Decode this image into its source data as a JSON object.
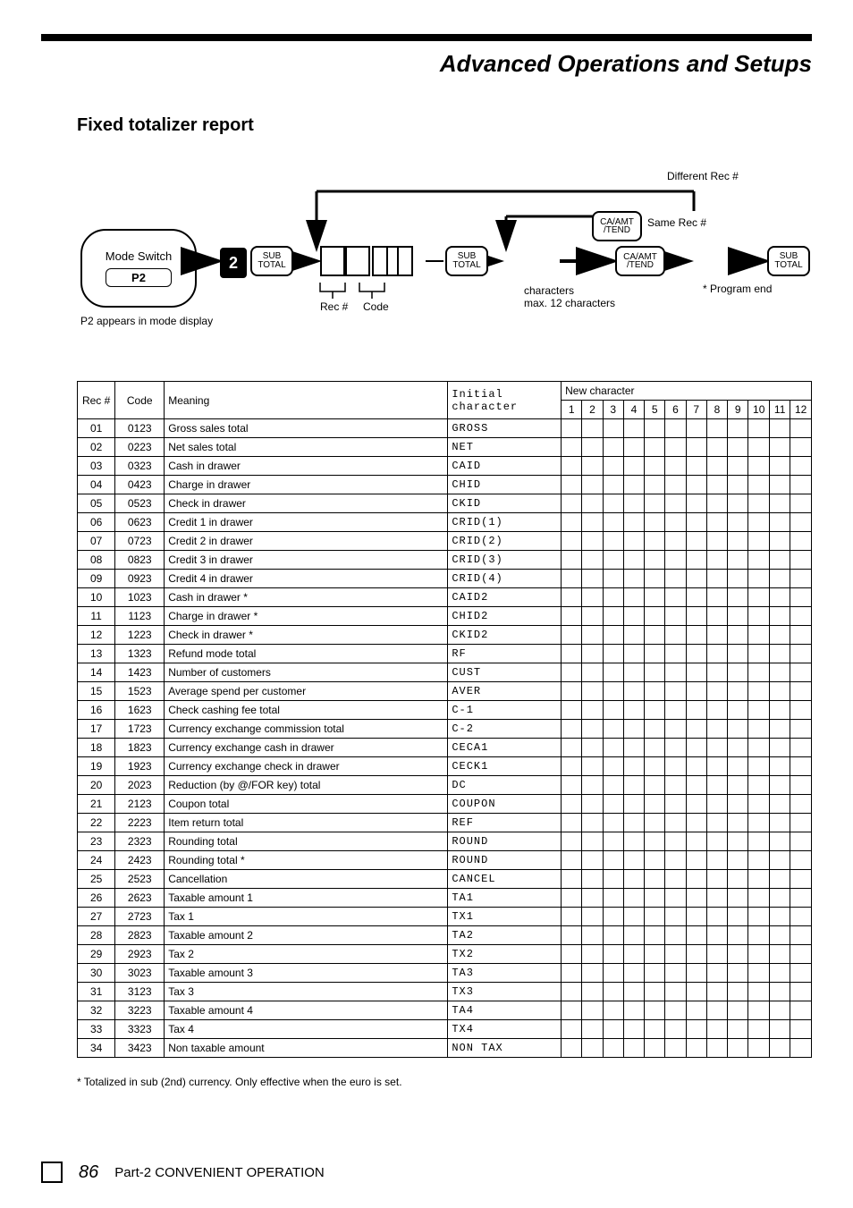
{
  "headingRight": "Advanced Operations and Setups",
  "sectionTitle": "Fixed totalizer report",
  "bubbleText": "Mode Switch",
  "modeLabel": "P2 appears in mode display",
  "recLabel": "Rec #",
  "codeLabel": "Code",
  "charLabel": "characters",
  "maxLabel": "max. 12 characters",
  "diffLabel": "Different",
  "sameLabel": "Same Rec #",
  "programCaption": "* Program end",
  "keys": {
    "two": "2",
    "subTotal": "SUB\nTOTAL",
    "caAmt": "CA/AMT\n/TEND"
  },
  "tableHeader": {
    "rec": "Rec #",
    "code": "Code",
    "meaning": "Meaning",
    "initial": "Initial character",
    "new": "New character"
  },
  "charNums": [
    "1",
    "2",
    "3",
    "4",
    "5",
    "6",
    "7",
    "8",
    "9",
    "10",
    "11",
    "12"
  ],
  "rows": [
    {
      "rec": "01",
      "code": "0123",
      "meaning": "Gross sales total",
      "initial": "GROSS"
    },
    {
      "rec": "02",
      "code": "0223",
      "meaning": "Net sales total",
      "initial": "NET"
    },
    {
      "rec": "03",
      "code": "0323",
      "meaning": "Cash in drawer",
      "initial": "CAID"
    },
    {
      "rec": "04",
      "code": "0423",
      "meaning": "Charge in drawer",
      "initial": "CHID"
    },
    {
      "rec": "05",
      "code": "0523",
      "meaning": "Check in drawer",
      "initial": "CKID"
    },
    {
      "rec": "06",
      "code": "0623",
      "meaning": "Credit 1 in drawer",
      "initial": "CRID(1)"
    },
    {
      "rec": "07",
      "code": "0723",
      "meaning": "Credit 2 in drawer",
      "initial": "CRID(2)"
    },
    {
      "rec": "08",
      "code": "0823",
      "meaning": "Credit 3 in drawer",
      "initial": "CRID(3)"
    },
    {
      "rec": "09",
      "code": "0923",
      "meaning": "Credit 4 in drawer",
      "initial": "CRID(4)"
    },
    {
      "rec": "10",
      "code": "1023",
      "meaning": "Cash in drawer *",
      "initial": "CAID2"
    },
    {
      "rec": "11",
      "code": "1123",
      "meaning": "Charge in drawer *",
      "initial": "CHID2"
    },
    {
      "rec": "12",
      "code": "1223",
      "meaning": "Check in drawer *",
      "initial": "CKID2"
    },
    {
      "rec": "13",
      "code": "1323",
      "meaning": "Refund mode total",
      "initial": "RF"
    },
    {
      "rec": "14",
      "code": "1423",
      "meaning": "Number of customers",
      "initial": "CUST"
    },
    {
      "rec": "15",
      "code": "1523",
      "meaning": "Average spend per customer",
      "initial": "AVER"
    },
    {
      "rec": "16",
      "code": "1623",
      "meaning": "Check cashing fee total",
      "initial": "C-1"
    },
    {
      "rec": "17",
      "code": "1723",
      "meaning": "Currency exchange commission total",
      "initial": "C-2"
    },
    {
      "rec": "18",
      "code": "1823",
      "meaning": "Currency exchange cash in drawer",
      "initial": "CECA1"
    },
    {
      "rec": "19",
      "code": "1923",
      "meaning": "Currency exchange check in drawer",
      "initial": "CECK1"
    },
    {
      "rec": "20",
      "code": "2023",
      "meaning": "Reduction (by @/FOR key) total",
      "initial": "DC"
    },
    {
      "rec": "21",
      "code": "2123",
      "meaning": "Coupon total",
      "initial": "COUPON"
    },
    {
      "rec": "22",
      "code": "2223",
      "meaning": "Item return total",
      "initial": "REF"
    },
    {
      "rec": "23",
      "code": "2323",
      "meaning": "Rounding total",
      "initial": "ROUND"
    },
    {
      "rec": "24",
      "code": "2423",
      "meaning": "Rounding total *",
      "initial": "ROUND"
    },
    {
      "rec": "25",
      "code": "2523",
      "meaning": "Cancellation",
      "initial": "CANCEL"
    },
    {
      "rec": "26",
      "code": "2623",
      "meaning": "Taxable amount 1",
      "initial": "TA1"
    },
    {
      "rec": "27",
      "code": "2723",
      "meaning": "Tax 1",
      "initial": "TX1"
    },
    {
      "rec": "28",
      "code": "2823",
      "meaning": "Taxable amount 2",
      "initial": "TA2"
    },
    {
      "rec": "29",
      "code": "2923",
      "meaning": "Tax 2",
      "initial": "TX2"
    },
    {
      "rec": "30",
      "code": "3023",
      "meaning": "Taxable amount 3",
      "initial": "TA3"
    },
    {
      "rec": "31",
      "code": "3123",
      "meaning": "Tax 3",
      "initial": "TX3"
    },
    {
      "rec": "32",
      "code": "3223",
      "meaning": "Taxable amount 4",
      "initial": "TA4"
    },
    {
      "rec": "33",
      "code": "3323",
      "meaning": "Tax 4",
      "initial": "TX4"
    },
    {
      "rec": "34",
      "code": "3423",
      "meaning": "Non taxable amount",
      "initial": "NON TAX"
    }
  ],
  "footnote": "* Totalized in sub (2nd) currency.  Only effective when the euro is set.",
  "footer": {
    "page": "86",
    "text": "Part-2 CONVENIENT OPERATION"
  }
}
